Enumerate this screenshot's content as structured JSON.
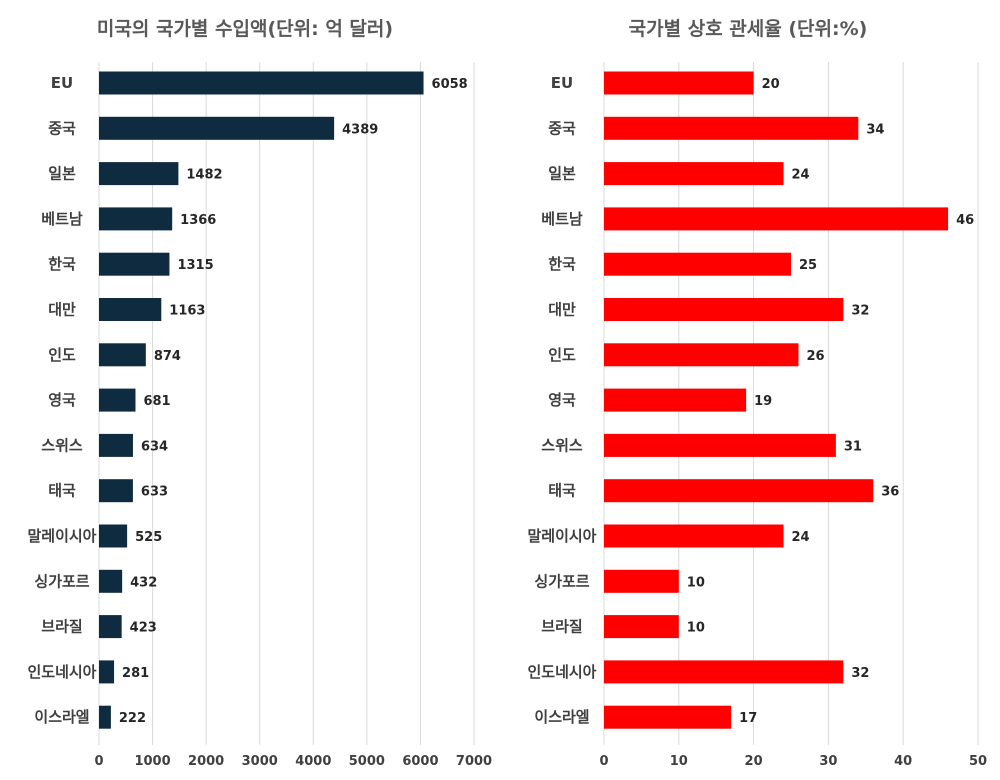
{
  "chart_data": [
    {
      "type": "bar",
      "orientation": "horizontal",
      "title": "미국의 국가별 수입액(단위: 억 달러)",
      "categories": [
        "EU",
        "중국",
        "일본",
        "베트남",
        "한국",
        "대만",
        "인도",
        "영국",
        "스위스",
        "태국",
        "말레이시아",
        "싱가포르",
        "브라질",
        "인도네시아",
        "이스라엘"
      ],
      "values": [
        6058,
        4389,
        1482,
        1366,
        1315,
        1163,
        874,
        681,
        634,
        633,
        525,
        432,
        423,
        281,
        222
      ],
      "xlim": [
        0,
        7000
      ],
      "xticks": [
        0,
        1000,
        2000,
        3000,
        4000,
        5000,
        6000,
        7000
      ],
      "grid": true,
      "color": "#0e2b3f"
    },
    {
      "type": "bar",
      "orientation": "horizontal",
      "title": "국가별 상호 관세율 (단위:%)",
      "categories": [
        "EU",
        "중국",
        "일본",
        "베트남",
        "한국",
        "대만",
        "인도",
        "영국",
        "스위스",
        "태국",
        "말레이시아",
        "싱가포르",
        "브라질",
        "인도네시아",
        "이스라엘"
      ],
      "values": [
        20,
        34,
        24,
        46,
        25,
        32,
        26,
        19,
        31,
        36,
        24,
        10,
        10,
        32,
        17
      ],
      "xlim": [
        0,
        50
      ],
      "xticks": [
        0,
        10,
        20,
        30,
        40,
        50
      ],
      "grid": true,
      "color": "#ff0000"
    }
  ]
}
